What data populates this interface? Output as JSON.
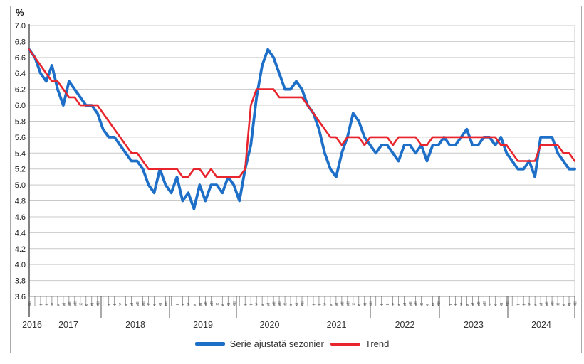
{
  "figure": {
    "unit_label": "%",
    "background": "#ffffff",
    "border_color": "#a9a9a9"
  },
  "axis": {
    "y_min": 3.6,
    "y_max": 7.0,
    "y_step": 0.2,
    "y_tick_labels": [
      "7.0",
      "6.8",
      "6.6",
      "6.4",
      "6.2",
      "6.0",
      "5.8",
      "5.6",
      "5.4",
      "5.2",
      "5.0",
      "4.8",
      "4.6",
      "4.4",
      "4.2",
      "4.0",
      "3.8",
      "3.6"
    ],
    "years": [
      "2016",
      "2017",
      "2018",
      "2019",
      "2020",
      "2021",
      "2022",
      "2023",
      "2024"
    ],
    "months_roman": [
      "I",
      "II",
      "III",
      "IV",
      "V",
      "VI",
      "VII",
      "VIII",
      "IX",
      "X",
      "XI",
      "XII"
    ],
    "grid_color": "#c9c9c9",
    "axis_color": "#4d4d4d",
    "label_color": "#1a1a1a"
  },
  "legend": [
    {
      "label": "Serie ajustată sezonier",
      "color": "#1e6fc8"
    },
    {
      "label": "Trend",
      "color": "#e8242c"
    }
  ],
  "chart_data": {
    "type": "line",
    "title": "",
    "xlabel": "",
    "ylabel": "%",
    "ylim": [
      3.6,
      7.0
    ],
    "grid": true,
    "legend_position": "bottom",
    "x": [
      "2016-12",
      "2017-01",
      "2017-02",
      "2017-03",
      "2017-04",
      "2017-05",
      "2017-06",
      "2017-07",
      "2017-08",
      "2017-09",
      "2017-10",
      "2017-11",
      "2017-12",
      "2018-01",
      "2018-02",
      "2018-03",
      "2018-04",
      "2018-05",
      "2018-06",
      "2018-07",
      "2018-08",
      "2018-09",
      "2018-10",
      "2018-11",
      "2018-12",
      "2019-01",
      "2019-02",
      "2019-03",
      "2019-04",
      "2019-05",
      "2019-06",
      "2019-07",
      "2019-08",
      "2019-09",
      "2019-10",
      "2019-11",
      "2019-12",
      "2020-01",
      "2020-02",
      "2020-03",
      "2020-04",
      "2020-05",
      "2020-06",
      "2020-07",
      "2020-08",
      "2020-09",
      "2020-10",
      "2020-11",
      "2020-12",
      "2021-01",
      "2021-02",
      "2021-03",
      "2021-04",
      "2021-05",
      "2021-06",
      "2021-07",
      "2021-08",
      "2021-09",
      "2021-10",
      "2021-11",
      "2021-12",
      "2022-01",
      "2022-02",
      "2022-03",
      "2022-04",
      "2022-05",
      "2022-06",
      "2022-07",
      "2022-08",
      "2022-09",
      "2022-10",
      "2022-11",
      "2022-12",
      "2023-01",
      "2023-02",
      "2023-03",
      "2023-04",
      "2023-05",
      "2023-06",
      "2023-07",
      "2023-08",
      "2023-09",
      "2023-10",
      "2023-11",
      "2023-12",
      "2024-01",
      "2024-02",
      "2024-03",
      "2024-04",
      "2024-05",
      "2024-06",
      "2024-07",
      "2024-08",
      "2024-09",
      "2024-10",
      "2024-11",
      "2024-12"
    ],
    "series": [
      {
        "name": "Serie ajustată sezonier",
        "color": "#1e6fc8",
        "width": 3.8,
        "values": [
          6.7,
          6.6,
          6.4,
          6.3,
          6.5,
          6.2,
          6.0,
          6.3,
          6.2,
          6.1,
          6.0,
          6.0,
          5.9,
          5.7,
          5.6,
          5.6,
          5.5,
          5.4,
          5.3,
          5.3,
          5.2,
          5.0,
          4.9,
          5.2,
          5.0,
          4.9,
          5.1,
          4.8,
          4.9,
          4.7,
          5.0,
          4.8,
          5.0,
          5.0,
          4.9,
          5.1,
          5.0,
          4.8,
          5.2,
          5.5,
          6.1,
          6.5,
          6.7,
          6.6,
          6.4,
          6.2,
          6.2,
          6.3,
          6.2,
          6.0,
          5.9,
          5.7,
          5.4,
          5.2,
          5.1,
          5.4,
          5.6,
          5.9,
          5.8,
          5.6,
          5.5,
          5.4,
          5.5,
          5.5,
          5.4,
          5.3,
          5.5,
          5.5,
          5.4,
          5.5,
          5.3,
          5.5,
          5.5,
          5.6,
          5.5,
          5.5,
          5.6,
          5.7,
          5.5,
          5.5,
          5.6,
          5.6,
          5.5,
          5.6,
          5.4,
          5.3,
          5.2,
          5.2,
          5.3,
          5.1,
          5.6,
          5.6,
          5.6,
          5.4,
          5.3,
          5.2,
          5.2
        ]
      },
      {
        "name": "Trend",
        "color": "#e8242c",
        "width": 2.6,
        "values": [
          6.7,
          6.6,
          6.5,
          6.4,
          6.3,
          6.3,
          6.2,
          6.1,
          6.1,
          6.0,
          6.0,
          6.0,
          6.0,
          5.9,
          5.8,
          5.7,
          5.6,
          5.5,
          5.4,
          5.4,
          5.3,
          5.2,
          5.2,
          5.2,
          5.2,
          5.2,
          5.2,
          5.1,
          5.1,
          5.2,
          5.2,
          5.1,
          5.2,
          5.1,
          5.1,
          5.1,
          5.1,
          5.1,
          5.2,
          6.0,
          6.2,
          6.2,
          6.2,
          6.2,
          6.1,
          6.1,
          6.1,
          6.1,
          6.1,
          6.0,
          5.9,
          5.8,
          5.7,
          5.6,
          5.6,
          5.5,
          5.6,
          5.6,
          5.6,
          5.5,
          5.6,
          5.6,
          5.6,
          5.6,
          5.5,
          5.6,
          5.6,
          5.6,
          5.6,
          5.5,
          5.5,
          5.6,
          5.6,
          5.6,
          5.6,
          5.6,
          5.6,
          5.6,
          5.6,
          5.6,
          5.6,
          5.6,
          5.6,
          5.5,
          5.5,
          5.4,
          5.3,
          5.3,
          5.3,
          5.3,
          5.5,
          5.5,
          5.5,
          5.5,
          5.4,
          5.4,
          5.3
        ]
      }
    ]
  }
}
